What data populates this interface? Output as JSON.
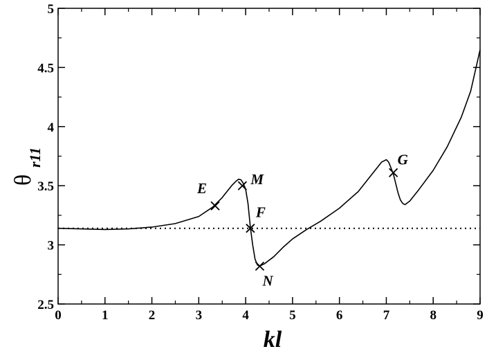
{
  "chart_data": {
    "type": "line",
    "xlabel": "kl",
    "ylabel": "θ",
    "ylabel_subscript": "r11",
    "xlim": [
      0,
      9
    ],
    "ylim": [
      2.5,
      5
    ],
    "grid": false,
    "x_ticks": [
      "0",
      "1",
      "2",
      "3",
      "4",
      "5",
      "6",
      "7",
      "8",
      "9"
    ],
    "y_ticks": [
      "2.5",
      "3",
      "3.5",
      "4",
      "4.5",
      "5"
    ],
    "series": [
      {
        "style": "solid",
        "x": [
          0,
          0.5,
          1,
          1.5,
          2,
          2.5,
          3,
          3.3,
          3.5,
          3.7,
          3.8,
          3.85,
          3.9,
          3.95,
          4.0,
          4.05,
          4.1,
          4.15,
          4.2,
          4.25,
          4.3,
          4.4,
          4.6,
          4.8,
          5.0,
          5.3,
          5.6,
          6.0,
          6.4,
          6.8,
          6.9,
          7.0,
          7.05,
          7.1,
          7.15,
          7.2,
          7.25,
          7.3,
          7.35,
          7.4,
          7.5,
          7.7,
          8.0,
          8.3,
          8.6,
          8.8,
          9.0
        ],
        "y": [
          3.14,
          3.135,
          3.13,
          3.135,
          3.15,
          3.18,
          3.24,
          3.32,
          3.4,
          3.5,
          3.54,
          3.555,
          3.55,
          3.52,
          3.47,
          3.35,
          3.15,
          3.0,
          2.88,
          2.83,
          2.82,
          2.84,
          2.9,
          2.98,
          3.05,
          3.13,
          3.2,
          3.31,
          3.45,
          3.65,
          3.7,
          3.72,
          3.7,
          3.65,
          3.6,
          3.52,
          3.44,
          3.38,
          3.35,
          3.34,
          3.37,
          3.47,
          3.63,
          3.83,
          4.08,
          4.3,
          4.65
        ]
      },
      {
        "style": "dotted",
        "x": [
          0,
          9
        ],
        "y": [
          3.14,
          3.14
        ]
      }
    ],
    "markers": [
      {
        "label": "E",
        "x": 3.35,
        "y": 3.33
      },
      {
        "label": "M",
        "x": 3.93,
        "y": 3.5
      },
      {
        "label": "F",
        "x": 4.1,
        "y": 3.14
      },
      {
        "label": "N",
        "x": 4.3,
        "y": 2.82
      },
      {
        "label": "G",
        "x": 7.15,
        "y": 3.61
      }
    ]
  }
}
